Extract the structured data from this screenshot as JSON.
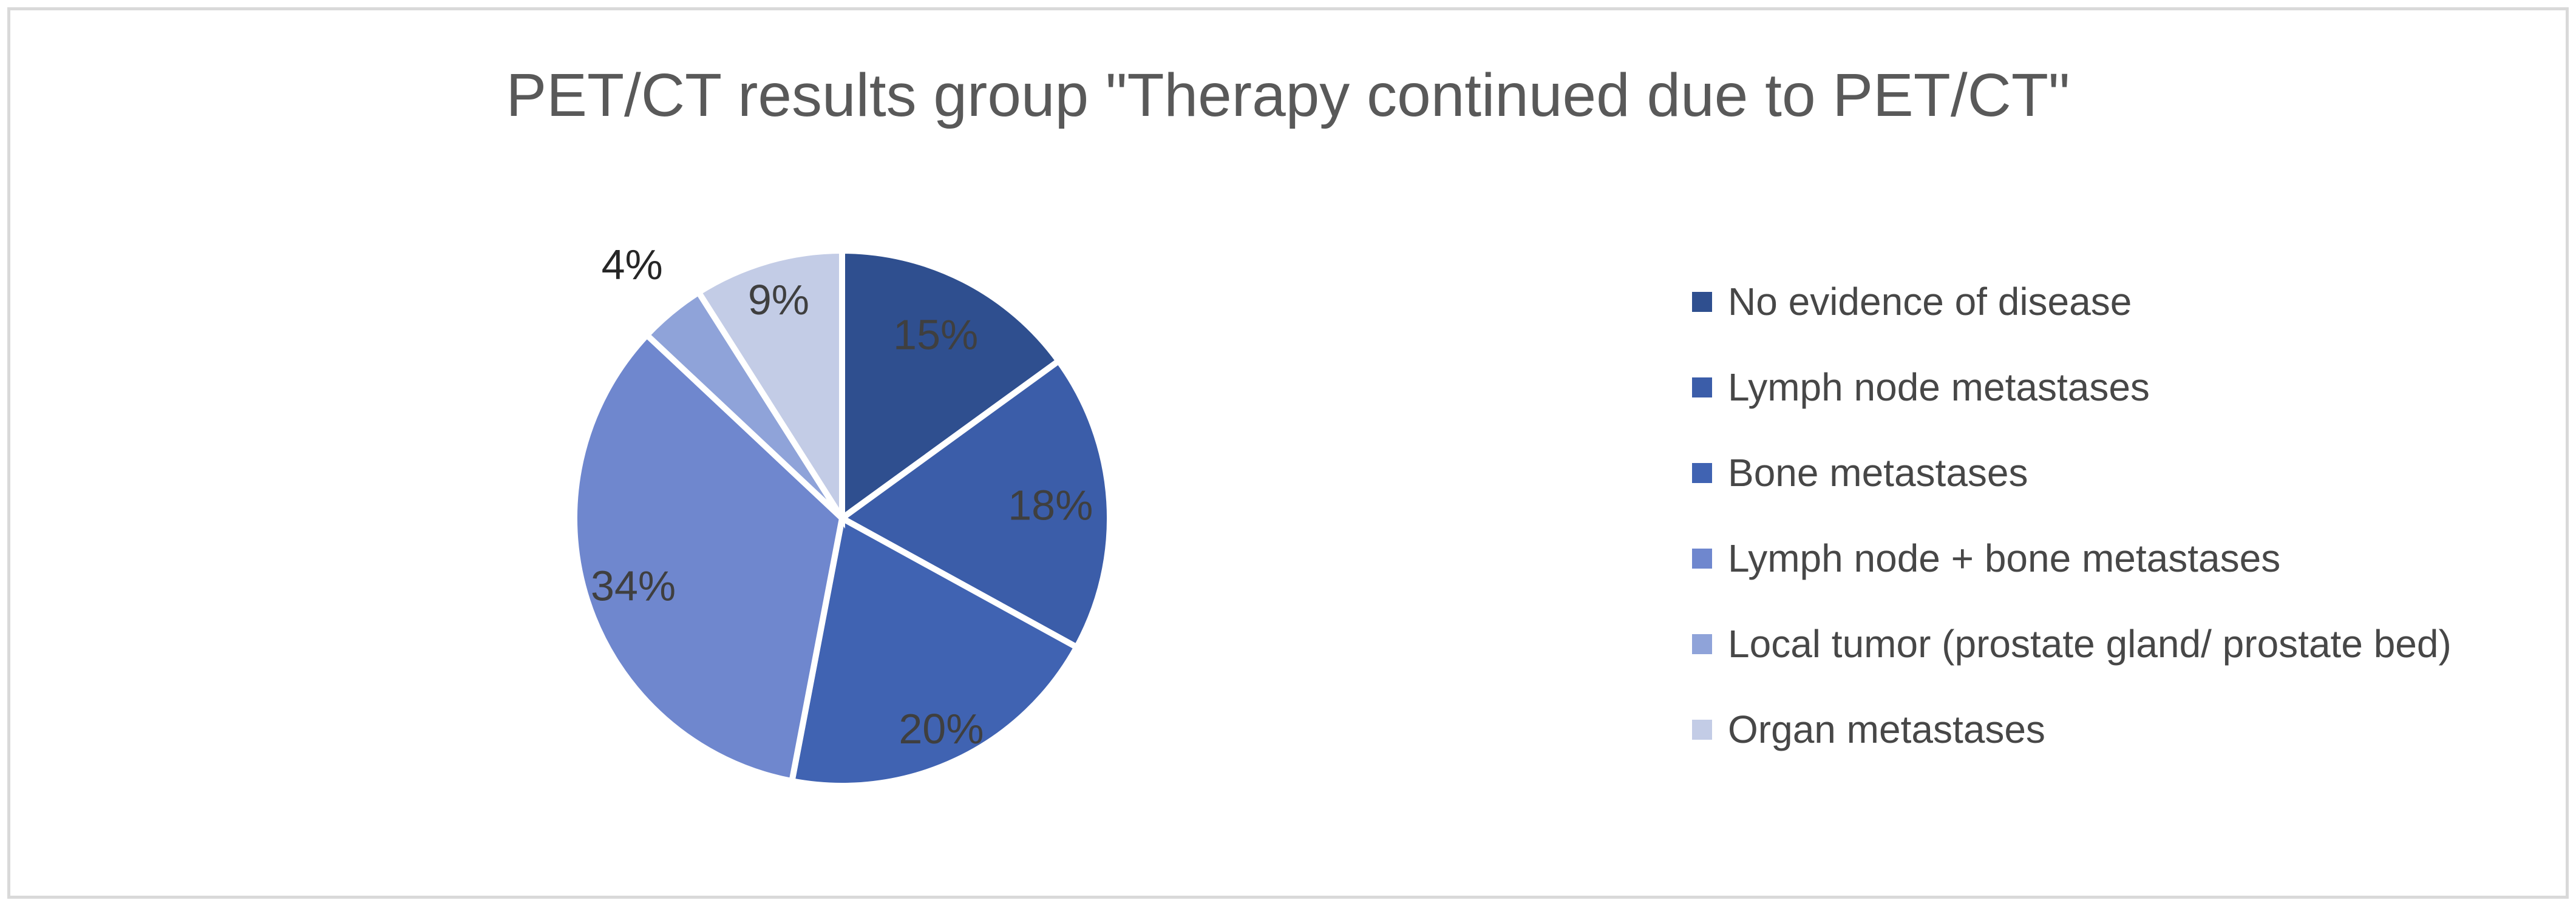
{
  "chart_data": {
    "type": "pie",
    "title": "PET/CT results group \"Therapy continued due to PET/CT\"",
    "legend_position": "right",
    "start_angle_deg_from_12_clockwise": 0,
    "slice_gap_color": "#ffffff",
    "slices": [
      {
        "label": "No evidence of disease",
        "value": 15,
        "pct_label": "15%",
        "color": "#2F4F8F",
        "label_r": 0.77,
        "label_inside": true,
        "label_color": "#3F3F3F"
      },
      {
        "label": "Lymph node metastases",
        "value": 18,
        "pct_label": "18%",
        "color": "#3B5DA9",
        "label_r": 0.78,
        "label_inside": true,
        "label_color": "#3F3F3F"
      },
      {
        "label": "Bone metastases",
        "value": 20,
        "pct_label": "20%",
        "color": "#4063B2",
        "label_r": 0.87,
        "label_inside": true,
        "label_color": "#3F3F3F"
      },
      {
        "label": "Lymph node + bone metastases",
        "value": 34,
        "pct_label": "34%",
        "color": "#6F87CE",
        "label_r": 0.82,
        "label_inside": true,
        "label_color": "#3F3F3F"
      },
      {
        "label": "Local tumor (prostate gland/ prostate bed)",
        "value": 4,
        "pct_label": "4%",
        "color": "#8FA3D9",
        "label_r": 1.23,
        "label_inside": false,
        "label_color": "#262626"
      },
      {
        "label": "Organ metastases",
        "value": 9,
        "pct_label": "9%",
        "color": "#C3CCE6",
        "label_r": 0.85,
        "label_inside": true,
        "label_color": "#3F3F3F"
      }
    ]
  },
  "style": {
    "border_color": "#d9d9d9",
    "title_color": "#595959",
    "legend_text_color": "#474747",
    "background": "#ffffff"
  }
}
